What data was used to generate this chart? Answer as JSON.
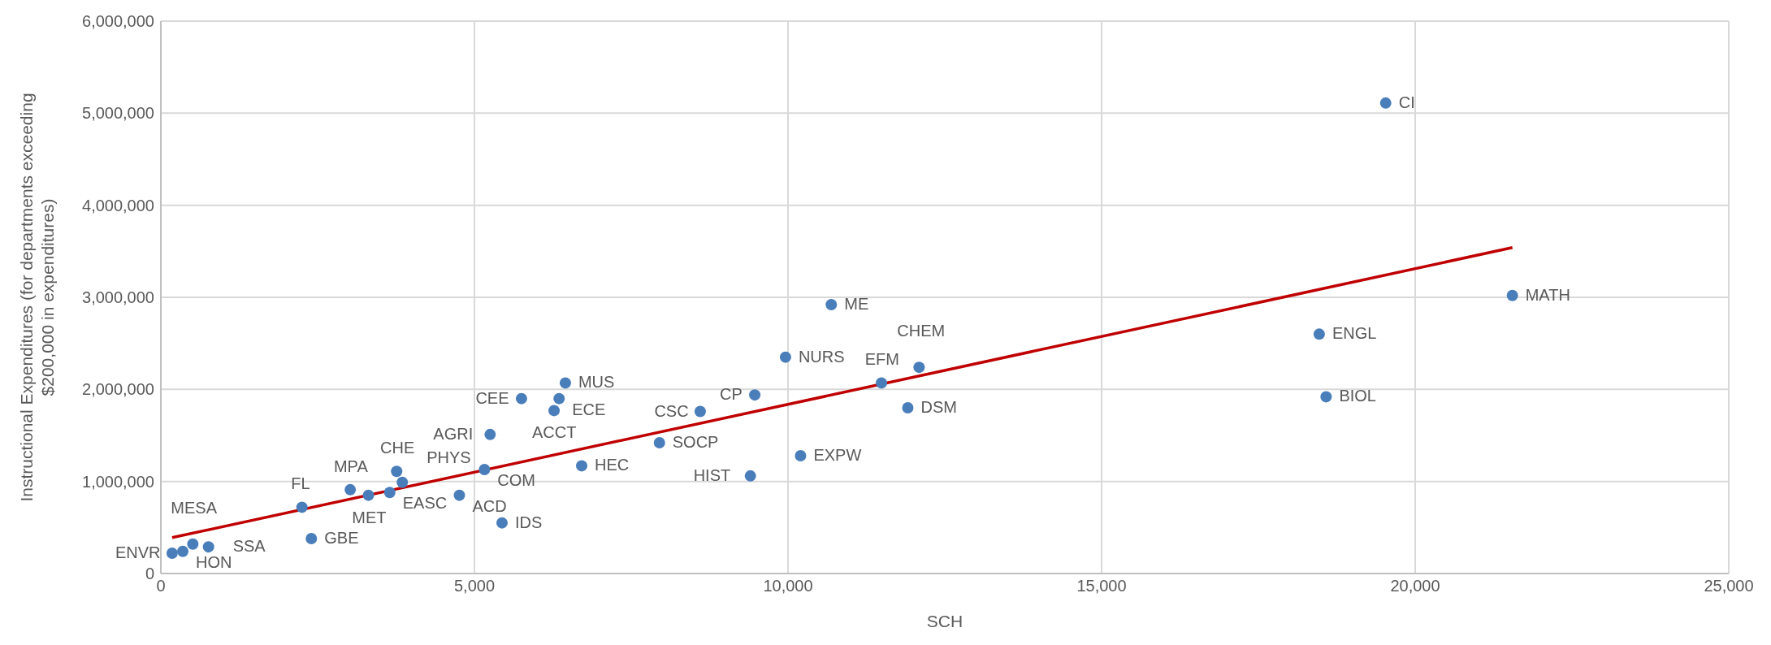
{
  "chart_data": {
    "type": "scatter",
    "xlabel": "SCH",
    "ylabel": "Instructional Expenditures (for departments exceeding $200,000 in expenditures)",
    "xlim": [
      0,
      25000
    ],
    "xticks": [
      0,
      {
        "value": 5000,
        "label": "5,000"
      },
      {
        "value": 10000,
        "label": "10,000"
      },
      {
        "value": 15000,
        "label": "15,000"
      },
      {
        "value": 20000,
        "label": "20,000"
      },
      {
        "value": 25000,
        "label": "25,000"
      }
    ],
    "ylim": [
      0,
      6000000
    ],
    "yticks": [
      0,
      {
        "value": 1000000,
        "label": "1,000,000"
      },
      {
        "value": 2000000,
        "label": "2,000,000"
      },
      {
        "value": 3000000,
        "label": "3,000,000"
      },
      {
        "value": 4000000,
        "label": "4,000,000"
      },
      {
        "value": 5000000,
        "label": "5,000,000"
      },
      {
        "value": 6000000,
        "label": "6,000,000"
      }
    ],
    "grid": true,
    "legend": false,
    "marker": "circle",
    "series": [
      {
        "color": "#4a7ebb",
        "x": [
          19530,
          21550,
          18470,
          18580,
          10690,
          9960,
          12090,
          11490,
          11910,
          9470,
          8600,
          10200,
          9400,
          7950,
          6710,
          6450,
          5750,
          6350,
          6270,
          5250,
          5160,
          5440,
          4760,
          3760,
          3850,
          3020,
          3310,
          3650,
          2250,
          2400,
          180,
          350,
          510,
          760
        ],
        "values": [
          5110000,
          3020000,
          2600000,
          1920000,
          2920000,
          2350000,
          2240000,
          2070000,
          1800000,
          1940000,
          1760000,
          1280000,
          1060000,
          1420000,
          1170000,
          2070000,
          1900000,
          1900000,
          1770000,
          1510000,
          1130000,
          550000,
          850000,
          1110000,
          990000,
          910000,
          850000,
          880000,
          720000,
          380000,
          220000,
          240000,
          320000,
          290000
        ],
        "value_labels": [
          "CI",
          "MATH",
          "ENGL",
          "BIOL",
          "ME",
          "NURS",
          "CHEM",
          "EFM",
          "DSM",
          "CP",
          "CSC",
          "EXPW",
          "HIST",
          "SOCP",
          "HEC",
          "MUS",
          "CEE",
          "ECE",
          "ACCT",
          "AGRI",
          "COM",
          "IDS",
          "ACD",
          "CHE",
          "PHYS",
          "MPA",
          "MET",
          "EASC",
          "FL",
          "GBE",
          "ENVR",
          "HON",
          "MESA",
          "SSA"
        ]
      },
      {
        "type": "line",
        "color": "#c00000",
        "line_style": "solid",
        "marker": "none",
        "x": [
          180,
          21550
        ],
        "values": [
          390000,
          3540000
        ]
      }
    ]
  }
}
